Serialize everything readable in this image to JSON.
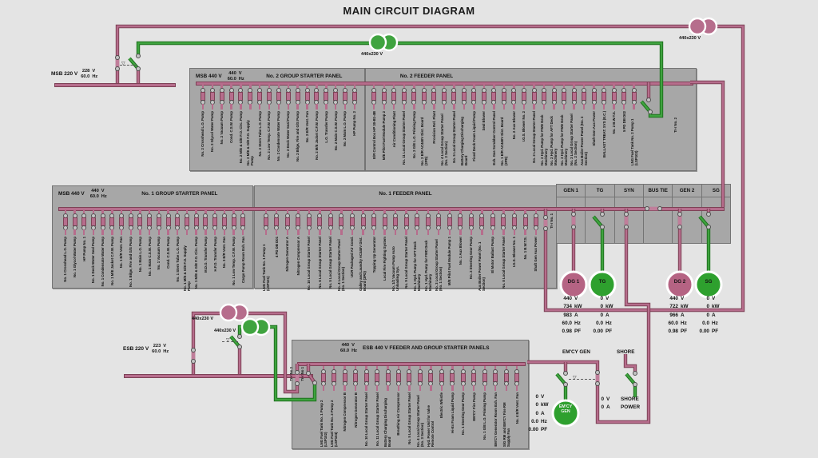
{
  "title": "MAIN CIRCUIT DIAGRAM",
  "colors": {
    "energized": "#b66d8c",
    "deenergized": "#3fa33f",
    "panel": "#a7a7a7",
    "background": "#e4e4e4"
  },
  "msb220": {
    "label": "MSB 220 V",
    "voltage": "228",
    "voltage_unit": "V",
    "freq": "60.0",
    "freq_unit": "Hz"
  },
  "esb220": {
    "label": "ESB 220 V",
    "voltage": "223",
    "voltage_unit": "V",
    "freq": "60.0",
    "freq_unit": "Hz"
  },
  "transformers": [
    {
      "id": "msb-standby-transformer",
      "label": "440x230 V"
    },
    {
      "id": "msb-main-transformer",
      "label": "440x230 V"
    },
    {
      "id": "esb-main-transformer",
      "label": "440x230 V"
    },
    {
      "id": "esb-standby-transformer",
      "label": "440x230 V"
    }
  ],
  "panels": {
    "no2gsp": {
      "bus_label": "MSB 440 V",
      "voltage": "440",
      "voltage_unit": "V",
      "freq": "60.0",
      "freq_unit": "Hz",
      "title": "No. 2 GROUP STARTER PANEL",
      "feeders": [
        "No. 2 Crosshead L.O. Pump",
        "No. 2 Glycol Water Pump",
        "No. 2 Vacuum Pump",
        "Cond. C.S.W. Pump",
        "No. 2 M/E & G/E F.O. Circ. Pump",
        "No. 2 M/E & G/E F.O. Supply Pump",
        "No. 2 Stern Tube L.O. Pump",
        "No. 2 Low Temp. C.F.W. Pump",
        "No. 2 Condensate Water Pump",
        "No. 2 Deck Water Seal Pump",
        "No. 2 Bilge, Fire and G/S Pump",
        "No. 2 E/R Vent. Fan",
        "No. 2 M/E Jacket C.F.W. Pump",
        "L.O. Transfer Pump",
        "No. 2 Main C.S.W. Pump",
        "No. 2 Main L.O. Pump",
        "HP Pump No. 2"
      ]
    },
    "no2fp": {
      "title": "No. 2 FEEDER PANEL",
      "transformer_feeder": "Tr-r No. 2",
      "feeders": [
        "E/R Control Box HP 30-B1-4B",
        "M/E Pilot Fuel Module Pump 2",
        "Air Conditioning Plant",
        "No. 11 Local Group Starter Panel",
        "No. 2 G/E L.O. Priming Pump",
        "No. 2 E/R AC440V Dist. Board (2PD)",
        "Provision Ref. Plant",
        "No. 4 Local Group Starter Panel (No. 2 Section)",
        "No. 5 Local Group Starter Panel",
        "Battery Charging Discharging Board",
        "Fixed Deck Foam Liquid Pump",
        "Seal Blower",
        "Exh. Gas Scrubber Control Panel",
        "No. 1 E/R AC440V Dist. Board (2PD)",
        "No. 2 Aux Blower",
        "I.G.S. Blower No. 2",
        "No. 2 Local Group Starter Panel",
        "No. 2 Hyd. Pump for FWD Deck Machinery",
        "No. 2 Hyd. Pump for AFT Deck Machinery",
        "No. 3 Hyd. Pump for FWD Deck Machinery",
        "No. 3 Local Group Starter Panel (No. 2 Section)",
        "Aux Boiler Power Panel (No. 2 Section)",
        "Shaft Gen Aux Power",
        "BALLAST TREAT. SYS (E.C.)",
        "No. 2 B.W.T.S.",
        "5 PD DB D02",
        "LNG Fuel Tank No. 2 Pump 1 (LSP103)"
      ]
    },
    "no1gsp": {
      "bus_label": "MSB 440 V",
      "voltage": "440",
      "voltage_unit": "V",
      "freq": "60.0",
      "freq_unit": "Hz",
      "title": "No. 1 GROUP STARTER PANEL",
      "feeders": [
        "No. 1 Crosshead L.O. Pump",
        "No. 1 Glycol Water Pump",
        "HP Pump No. 1",
        "No. 1 Deck Water Seal Pump",
        "No. 1 Condensate Water Pump",
        "No. 1 M/E Jacket C.F.W. Pump",
        "No. 1 E/R Vent. Fan",
        "No. 1 Bilge, Fire and G/S Pump",
        "No. 1 Main L.O. Pump",
        "No. 1 Main C.S.W. Pump",
        "No. 1 Vacuum Pump",
        "Cond. C.S.W. Pump",
        "No. 1 Stern Tube L.O. Pump",
        "No. 1 M/E & G/E F.O. Supply Pump",
        "No. 1 M/E & G/E F.O. Circ. Pump",
        "M.D.O. Transfer Pump",
        "H.F.O. Transfer Pump",
        "No. 3 E/R Vent. Fan",
        "No. 1 Low Temp. C.F.W. Pump",
        "Cargo Pump Room Exh. Fan"
      ]
    },
    "no1fp": {
      "title": "No. 1 FEEDER PANEL",
      "transformer_feeder": "Tr-r No. 1",
      "feeders": [
        "LNG Fuel Tank No. 1 Pump 1 (LSP101)",
        "4 PD DB D01",
        "Nitrogen Generator A",
        "Nitrogen Compressor A",
        "No. 10 Local Group Starter Panel",
        "No. 6 Local Group Starter Panel",
        "No. 5 Local Group Starter Panel",
        "No. 4 Local Group Starter Panel (No. 1 Section)",
        "UCR Packaged Air Cond.",
        "Galley and Laundry AC440V Dist. Board (3PD)",
        "Topping Up Generator",
        "Local Fire Fighting System",
        "No. 1/2 Vacuum Pump Auto Unloading Sys.",
        "No. 9 Local Group Starter Panel",
        "No. 1 Hyd. Pump for AFT Deck Machinery",
        "No. 1 Hyd. Pump for FWD Deck Machinery",
        "No. 3 Local Group Starter Panel (No. 1 Section)",
        "M/E Pilot Fuel Module Pump 1",
        "No. 1 Aux Blower",
        "No. 2 Steering Gear Pump",
        "Aux Boiler Power Panel (No. 1 Section)",
        "El Motor Ballast Pump",
        "No. 8 Local Group Starter Panel",
        "I.G.S. Blower No. 1",
        "No. 1 B.W.T.S.",
        "Shaft Gen Aux Power"
      ]
    },
    "esb": {
      "voltage": "440",
      "voltage_unit": "V",
      "freq": "60.0",
      "freq_unit": "Hz",
      "title": "ESB 440 V FEEDER AND GROUP STARTER PANELS",
      "incoming": [
        "Tr-r No 2",
        "Tr-r No 1"
      ],
      "feeders": [
        "LNG Fuel Tank No. 1 Pump 2 (LSP102)",
        "LNG Fuel Tank No. 2 Pump 2 (LSP104)",
        "Nitrogen Compressor B",
        "Nitrogen Generator B",
        "No. 10 Local Group Starter Panel",
        "No. 11 Local Group Starter Panel",
        "Battery Charging Discharging Board",
        "Breathing Air Compressor",
        "No. 5 Local Group Starter Panel",
        "No. 4 Local Group Starter Panel (No. 3 Section)",
        "Hyd. Power Unit for Valve Remote Control",
        "Electric Whistle",
        "Hi-Ex Foam Liquid Pump",
        "No. 1 Steering Gear Pump",
        "EM'CY Fire Pump",
        "No. 1 G/E L.O. Priming Pump",
        "EM'CY Generator Room Exh. Fan",
        "S/G RM and EM'CY Fire RM Supply Fan",
        "No. 4 E/R Vent. Fan"
      ]
    }
  },
  "gen_section": {
    "columns": [
      "GEN 1",
      "TG",
      "SYN",
      "BUS TIE",
      "GEN 2",
      "SG"
    ]
  },
  "generators": [
    {
      "id": "dg1",
      "label": "DG 1",
      "values": [
        [
          "440",
          "V"
        ],
        [
          "734",
          "kW"
        ],
        [
          "983",
          "A"
        ],
        [
          "60.0",
          "Hz"
        ],
        [
          "0.98",
          "PF"
        ]
      ]
    },
    {
      "id": "tg",
      "label": "TG",
      "values": [
        [
          "0",
          "V"
        ],
        [
          "0",
          "kW"
        ],
        [
          "0",
          "A"
        ],
        [
          "0.0",
          "Hz"
        ],
        [
          "0.00",
          "PF"
        ]
      ]
    },
    {
      "id": "dg2",
      "label": "DG 2",
      "values": [
        [
          "440",
          "V"
        ],
        [
          "722",
          "kW"
        ],
        [
          "966",
          "A"
        ],
        [
          "60.0",
          "Hz"
        ],
        [
          "0.98",
          "PF"
        ]
      ]
    },
    {
      "id": "sg",
      "label": "SG",
      "values": [
        [
          "0",
          "V"
        ],
        [
          "0",
          "kW"
        ],
        [
          "0",
          "A"
        ],
        [
          "0.0",
          "Hz"
        ],
        [
          "0.00",
          "PF"
        ]
      ]
    }
  ],
  "emcy_gen": {
    "section_label": "EM'CY GEN",
    "circle_label": "EM'CY GEN",
    "values": [
      [
        "0",
        "V"
      ],
      [
        "0",
        "kW"
      ],
      [
        "0",
        "A"
      ],
      [
        "0.0",
        "Hz"
      ],
      [
        "0.00",
        "PF"
      ]
    ]
  },
  "shore": {
    "section_label": "SHORE",
    "power_label_1": "SHORE",
    "power_label_2": "POWER",
    "values": [
      [
        "0",
        "V"
      ],
      [
        "0",
        "A"
      ]
    ]
  }
}
